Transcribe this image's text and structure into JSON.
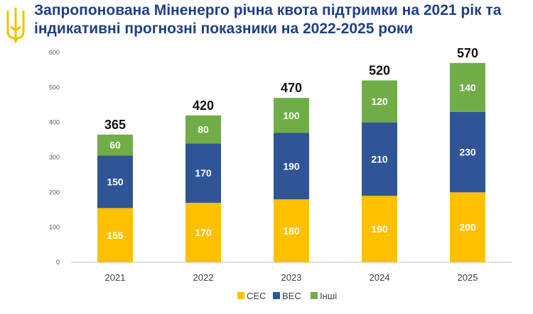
{
  "title": {
    "line1": "Запропонована Міненерго річна квота підтримки на 2021 рік та",
    "line2": "індикативні прогнозні показники на 2022-2025 роки"
  },
  "emblem": {
    "icon": "trident-icon",
    "color": "#f2c200"
  },
  "chart_data": {
    "type": "bar",
    "stacked": true,
    "categories": [
      "2021",
      "2022",
      "2023",
      "2024",
      "2025"
    ],
    "series": [
      {
        "name": "СЕС",
        "color": "#ffc000",
        "values": [
          155,
          170,
          180,
          190,
          200
        ]
      },
      {
        "name": "ВЕС",
        "color": "#2f5597",
        "values": [
          150,
          170,
          190,
          210,
          230
        ]
      },
      {
        "name": "Інші",
        "color": "#70ad47",
        "values": [
          60,
          80,
          100,
          120,
          140
        ]
      }
    ],
    "totals": [
      "365",
      "420",
      "470",
      "520",
      "570"
    ],
    "ylim": [
      0,
      600
    ],
    "yticks": [
      "0",
      "100",
      "200",
      "300",
      "400",
      "500",
      "600"
    ],
    "grid": false,
    "legend": "bottom-center"
  }
}
